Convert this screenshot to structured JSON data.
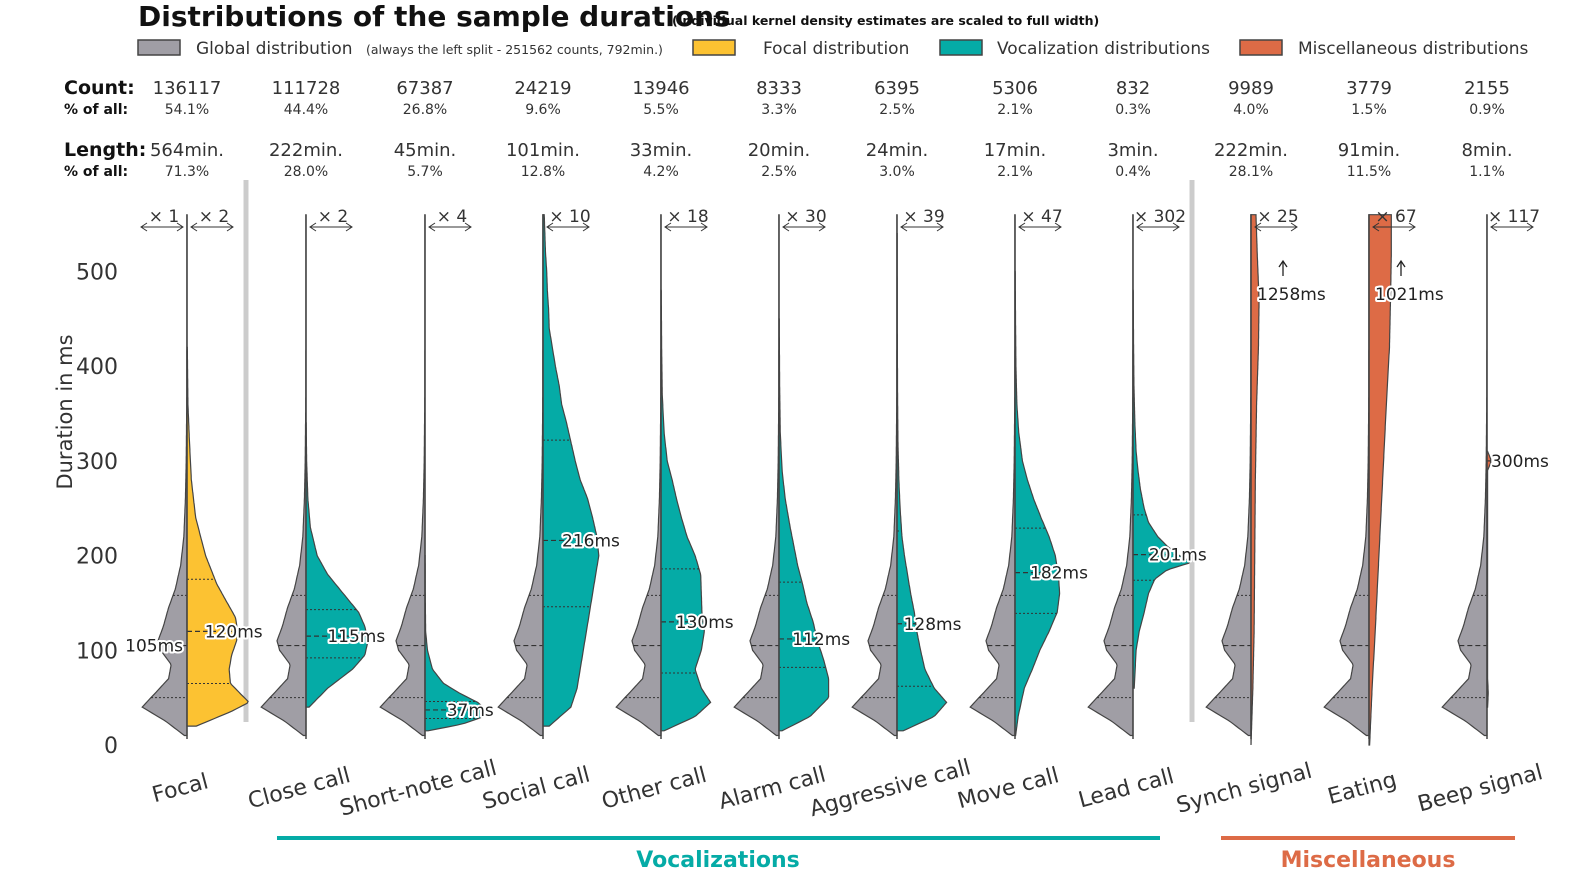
{
  "title": "Distributions of the sample durations",
  "subtitle": "(Individual kernel density estimates are scaled to full width)",
  "legend": {
    "global": "Global distribution",
    "global_note": "(always the left split - 251562 counts, 792min.)",
    "focal": "Focal distribution",
    "vocalization": "Vocalization distributions",
    "misc": "Miscellaneous distributions"
  },
  "colors": {
    "global": "#a09ea5",
    "focal": "#fcc232",
    "vocalization": "#05aba6",
    "misc": "#dd6b46",
    "separator": "#cccccc",
    "outline": "#444444"
  },
  "row_labels": {
    "count": "Count",
    "count_pct": "% of all",
    "length": "Length",
    "length_pct": "% of all"
  },
  "group_labels": {
    "vocalizations": "Vocalizations",
    "misc": "Miscellaneous"
  },
  "chart_data": {
    "type": "violin",
    "ylabel": "Duration in ms",
    "ylim": [
      0,
      560
    ],
    "yticks": [
      "0",
      "100",
      "200",
      "300",
      "400",
      "500"
    ],
    "global_median_label": "105ms",
    "categories": [
      {
        "name": "Focal",
        "group": "focal",
        "count": "136117",
        "count_pct": "54.1%",
        "length": "564min.",
        "length_pct": "71.3%",
        "scales": [
          "× 1",
          "× 2"
        ],
        "median": 120,
        "median_label": "120ms",
        "quartiles": [
          65,
          175
        ],
        "shape": [
          [
            20,
            0.15
          ],
          [
            35,
            0.7
          ],
          [
            45,
            1.0
          ],
          [
            55,
            0.85
          ],
          [
            65,
            0.7
          ],
          [
            80,
            0.68
          ],
          [
            95,
            0.72
          ],
          [
            110,
            0.8
          ],
          [
            120,
            0.82
          ],
          [
            135,
            0.78
          ],
          [
            150,
            0.65
          ],
          [
            170,
            0.48
          ],
          [
            200,
            0.3
          ],
          [
            240,
            0.14
          ],
          [
            280,
            0.07
          ],
          [
            320,
            0.04
          ],
          [
            360,
            0.015
          ],
          [
            420,
            0.005
          ]
        ]
      },
      {
        "name": "Close call",
        "group": "vocalization",
        "count": "111728",
        "count_pct": "44.4%",
        "length": "222min.",
        "length_pct": "28.0%",
        "scales": [
          "× 2"
        ],
        "median": 115,
        "median_label": "115ms",
        "quartiles": [
          92,
          143
        ],
        "shape": [
          [
            40,
            0.05
          ],
          [
            60,
            0.35
          ],
          [
            80,
            0.75
          ],
          [
            95,
            0.95
          ],
          [
            110,
            1.0
          ],
          [
            125,
            0.95
          ],
          [
            140,
            0.85
          ],
          [
            160,
            0.6
          ],
          [
            180,
            0.35
          ],
          [
            200,
            0.18
          ],
          [
            230,
            0.07
          ],
          [
            260,
            0.03
          ],
          [
            300,
            0.01
          ],
          [
            340,
            0.003
          ]
        ]
      },
      {
        "name": "Short-note call",
        "group": "vocalization",
        "count": "67387",
        "count_pct": "26.8%",
        "length": "45min.",
        "length_pct": "5.7%",
        "scales": [
          "× 4"
        ],
        "median": 37,
        "median_label": "37ms",
        "quartiles": [
          28,
          46
        ],
        "shape": [
          [
            15,
            0.05
          ],
          [
            22,
            0.6
          ],
          [
            30,
            0.95
          ],
          [
            37,
            1.0
          ],
          [
            45,
            0.85
          ],
          [
            55,
            0.55
          ],
          [
            65,
            0.3
          ],
          [
            80,
            0.12
          ],
          [
            100,
            0.04
          ],
          [
            120,
            0.01
          ],
          [
            160,
            0.004
          ],
          [
            200,
            0.002
          ]
        ]
      },
      {
        "name": "Social call",
        "group": "vocalization",
        "count": "24219",
        "count_pct": "9.6%",
        "length": "101min.",
        "length_pct": "12.8%",
        "scales": [
          "× 10"
        ],
        "median": 216,
        "median_label": "216ms",
        "quartiles": [
          146,
          322
        ],
        "shape": [
          [
            20,
            0.1
          ],
          [
            40,
            0.45
          ],
          [
            60,
            0.55
          ],
          [
            80,
            0.6
          ],
          [
            100,
            0.65
          ],
          [
            120,
            0.7
          ],
          [
            140,
            0.75
          ],
          [
            160,
            0.8
          ],
          [
            180,
            0.85
          ],
          [
            200,
            0.9
          ],
          [
            220,
            0.87
          ],
          [
            240,
            0.8
          ],
          [
            260,
            0.72
          ],
          [
            280,
            0.6
          ],
          [
            300,
            0.52
          ],
          [
            320,
            0.45
          ],
          [
            340,
            0.38
          ],
          [
            360,
            0.3
          ],
          [
            380,
            0.26
          ],
          [
            400,
            0.2
          ],
          [
            420,
            0.15
          ],
          [
            440,
            0.1
          ],
          [
            460,
            0.09
          ],
          [
            480,
            0.07
          ],
          [
            500,
            0.06
          ],
          [
            520,
            0.04
          ],
          [
            540,
            0.03
          ],
          [
            560,
            0.02
          ]
        ]
      },
      {
        "name": "Other call",
        "group": "vocalization",
        "count": "13946",
        "count_pct": "5.5%",
        "length": "33min.",
        "length_pct": "4.2%",
        "scales": [
          "× 18"
        ],
        "median": 130,
        "median_label": "130ms",
        "quartiles": [
          76,
          186
        ],
        "shape": [
          [
            15,
            0.05
          ],
          [
            30,
            0.55
          ],
          [
            45,
            0.8
          ],
          [
            60,
            0.65
          ],
          [
            80,
            0.55
          ],
          [
            100,
            0.65
          ],
          [
            120,
            0.7
          ],
          [
            140,
            0.66
          ],
          [
            160,
            0.65
          ],
          [
            180,
            0.64
          ],
          [
            200,
            0.55
          ],
          [
            220,
            0.42
          ],
          [
            240,
            0.33
          ],
          [
            260,
            0.25
          ],
          [
            280,
            0.18
          ],
          [
            300,
            0.1
          ],
          [
            330,
            0.05
          ],
          [
            370,
            0.02
          ],
          [
            420,
            0.01
          ],
          [
            480,
            0.004
          ]
        ]
      },
      {
        "name": "Alarm call",
        "group": "vocalization",
        "count": "8333",
        "count_pct": "3.3%",
        "length": "20min.",
        "length_pct": "2.5%",
        "scales": [
          "× 30"
        ],
        "median": 112,
        "median_label": "112ms",
        "quartiles": [
          82,
          172
        ],
        "shape": [
          [
            15,
            0.05
          ],
          [
            30,
            0.5
          ],
          [
            50,
            0.8
          ],
          [
            70,
            0.8
          ],
          [
            90,
            0.72
          ],
          [
            110,
            0.62
          ],
          [
            130,
            0.55
          ],
          [
            150,
            0.45
          ],
          [
            170,
            0.38
          ],
          [
            190,
            0.3
          ],
          [
            210,
            0.24
          ],
          [
            230,
            0.18
          ],
          [
            260,
            0.1
          ],
          [
            290,
            0.05
          ],
          [
            330,
            0.02
          ],
          [
            380,
            0.01
          ],
          [
            450,
            0.004
          ]
        ]
      },
      {
        "name": "Aggressive call",
        "group": "vocalization",
        "count": "6395",
        "count_pct": "2.5%",
        "length": "24min.",
        "length_pct": "3.0%",
        "scales": [
          "× 39"
        ],
        "median": 128,
        "median_label": "128ms",
        "quartiles": [
          62,
          226
        ],
        "shape": [
          [
            15,
            0.1
          ],
          [
            30,
            0.6
          ],
          [
            45,
            0.8
          ],
          [
            60,
            0.6
          ],
          [
            80,
            0.45
          ],
          [
            100,
            0.38
          ],
          [
            120,
            0.32
          ],
          [
            140,
            0.28
          ],
          [
            160,
            0.22
          ],
          [
            180,
            0.17
          ],
          [
            200,
            0.12
          ],
          [
            220,
            0.08
          ],
          [
            250,
            0.05
          ],
          [
            280,
            0.03
          ],
          [
            320,
            0.015
          ],
          [
            380,
            0.008
          ],
          [
            450,
            0.005
          ],
          [
            540,
            0.003
          ]
        ]
      },
      {
        "name": "Move call",
        "group": "vocalization",
        "count": "5306",
        "count_pct": "2.1%",
        "length": "17min.",
        "length_pct": "2.1%",
        "scales": [
          "× 47"
        ],
        "median": 182,
        "median_label": "182ms",
        "quartiles": [
          139,
          229
        ],
        "shape": [
          [
            10,
            0.01
          ],
          [
            30,
            0.05
          ],
          [
            60,
            0.15
          ],
          [
            80,
            0.28
          ],
          [
            100,
            0.4
          ],
          [
            120,
            0.55
          ],
          [
            140,
            0.68
          ],
          [
            160,
            0.72
          ],
          [
            180,
            0.7
          ],
          [
            200,
            0.65
          ],
          [
            220,
            0.55
          ],
          [
            240,
            0.42
          ],
          [
            260,
            0.3
          ],
          [
            280,
            0.2
          ],
          [
            300,
            0.12
          ],
          [
            330,
            0.06
          ],
          [
            360,
            0.03
          ],
          [
            400,
            0.015
          ],
          [
            450,
            0.008
          ],
          [
            500,
            0.004
          ]
        ]
      },
      {
        "name": "Lead call",
        "group": "vocalization",
        "count": "832",
        "count_pct": "0.3%",
        "length": "3min.",
        "length_pct": "0.4%",
        "scales": [
          "× 302"
        ],
        "median": 201,
        "median_label": "201ms",
        "quartiles": [
          174,
          243
        ],
        "shape": [
          [
            60,
            0.02
          ],
          [
            100,
            0.05
          ],
          [
            120,
            0.1
          ],
          [
            140,
            0.18
          ],
          [
            160,
            0.25
          ],
          [
            175,
            0.35
          ],
          [
            185,
            0.55
          ],
          [
            193,
            0.95
          ],
          [
            200,
            0.75
          ],
          [
            210,
            0.55
          ],
          [
            220,
            0.4
          ],
          [
            235,
            0.25
          ],
          [
            250,
            0.18
          ],
          [
            270,
            0.12
          ],
          [
            290,
            0.08
          ],
          [
            310,
            0.05
          ],
          [
            340,
            0.03
          ],
          [
            380,
            0.015
          ],
          [
            430,
            0.008
          ],
          [
            480,
            0.004
          ]
        ]
      },
      {
        "name": "Synch signal",
        "group": "misc",
        "count": "9989",
        "count_pct": "4.0%",
        "length": "222min.",
        "length_pct": "28.1%",
        "scales": [
          "× 25"
        ],
        "median": 1258,
        "median_label": "1258ms",
        "quartiles": [],
        "shape": [
          [
            0,
            0.0
          ],
          [
            20,
            0.01
          ],
          [
            60,
            0.03
          ],
          [
            120,
            0.05
          ],
          [
            200,
            0.06
          ],
          [
            280,
            0.07
          ],
          [
            360,
            0.09
          ],
          [
            420,
            0.12
          ],
          [
            470,
            0.13
          ],
          [
            520,
            0.1
          ],
          [
            560,
            0.08
          ]
        ]
      },
      {
        "name": "Eating",
        "group": "misc",
        "count": "3779",
        "count_pct": "1.5%",
        "length": "91min.",
        "length_pct": "11.5%",
        "scales": [
          "× 67"
        ],
        "median": 1021,
        "median_label": "1021ms",
        "quartiles": [],
        "shape": [
          [
            0,
            0.01
          ],
          [
            60,
            0.05
          ],
          [
            120,
            0.1
          ],
          [
            200,
            0.16
          ],
          [
            280,
            0.22
          ],
          [
            360,
            0.28
          ],
          [
            420,
            0.33
          ],
          [
            480,
            0.35
          ],
          [
            520,
            0.36
          ],
          [
            560,
            0.36
          ]
        ]
      },
      {
        "name": "Beep signal",
        "group": "misc",
        "count": "2155",
        "count_pct": "0.9%",
        "length": "8min.",
        "length_pct": "1.1%",
        "scales": [
          "× 117"
        ],
        "median": 300,
        "median_label": "300ms",
        "quartiles": [],
        "shape": [
          [
            40,
            0.01
          ],
          [
            55,
            0.02
          ],
          [
            70,
            0.01
          ],
          [
            290,
            0.01
          ],
          [
            298,
            0.06
          ],
          [
            302,
            0.06
          ],
          [
            310,
            0.01
          ]
        ]
      }
    ]
  }
}
